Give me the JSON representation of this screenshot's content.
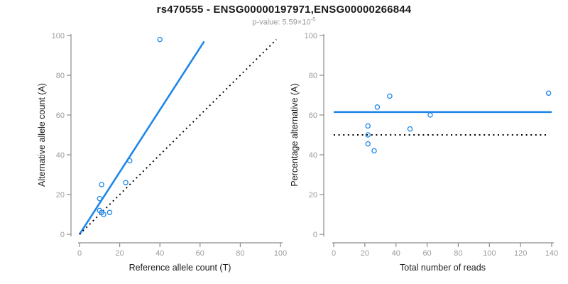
{
  "header": {
    "title": "rs470555 - ENSG00000197971,ENSG00000266844",
    "subtitle_label": "p-value: ",
    "pvalue_base": "5.59×10",
    "pvalue_exponent": "-5"
  },
  "colors": {
    "accent_blue": "#1f87e8",
    "line_black": "#000000",
    "axis_gray": "#8c8c8c",
    "tick_label_gray": "#9c9c9c",
    "axis_title_color": "#1a1a1a"
  },
  "chart_data": [
    {
      "type": "scatter",
      "panel": "left",
      "xlabel": "Reference allele count (T)",
      "ylabel": "Alternative allele count (A)",
      "xlim": [
        0,
        100
      ],
      "ylim": [
        0,
        100
      ],
      "xticks": [
        0,
        20,
        40,
        60,
        80,
        100
      ],
      "yticks": [
        0,
        20,
        40,
        60,
        80,
        100
      ],
      "grid": false,
      "points": [
        [
          10,
          18
        ],
        [
          10,
          12
        ],
        [
          11,
          11
        ],
        [
          11,
          25
        ],
        [
          12,
          10
        ],
        [
          15,
          11
        ],
        [
          23,
          26
        ],
        [
          25,
          37
        ],
        [
          40,
          98
        ]
      ],
      "lines": [
        {
          "name": "regression-line",
          "x1": 0,
          "y1": 0,
          "x2": 62,
          "y2": 97,
          "style": "solid",
          "color": "accent_blue"
        },
        {
          "name": "identity-line",
          "x1": 0,
          "y1": 0,
          "x2": 98,
          "y2": 98,
          "style": "dotted",
          "color": "line_black"
        }
      ]
    },
    {
      "type": "scatter",
      "panel": "right",
      "xlabel": "Total number of reads",
      "ylabel": "Percentage alternative (A)",
      "xlim": [
        0,
        140
      ],
      "ylim": [
        0,
        100
      ],
      "xticks": [
        0,
        20,
        40,
        60,
        80,
        100,
        120,
        140
      ],
      "yticks": [
        0,
        20,
        40,
        60,
        80,
        100
      ],
      "grid": false,
      "points": [
        [
          22,
          54.5
        ],
        [
          22,
          50
        ],
        [
          22,
          45.5
        ],
        [
          26,
          42
        ],
        [
          28,
          64
        ],
        [
          36,
          69.5
        ],
        [
          49,
          53
        ],
        [
          62,
          60
        ],
        [
          138,
          71
        ]
      ],
      "lines": [
        {
          "name": "mean-percentage-line",
          "x1": 0,
          "y1": 61.5,
          "x2": 140,
          "y2": 61.5,
          "style": "solid",
          "color": "accent_blue"
        },
        {
          "name": "fifty-percent-line",
          "x1": 0,
          "y1": 50,
          "x2": 137,
          "y2": 50,
          "style": "dotted",
          "color": "line_black"
        }
      ]
    }
  ]
}
